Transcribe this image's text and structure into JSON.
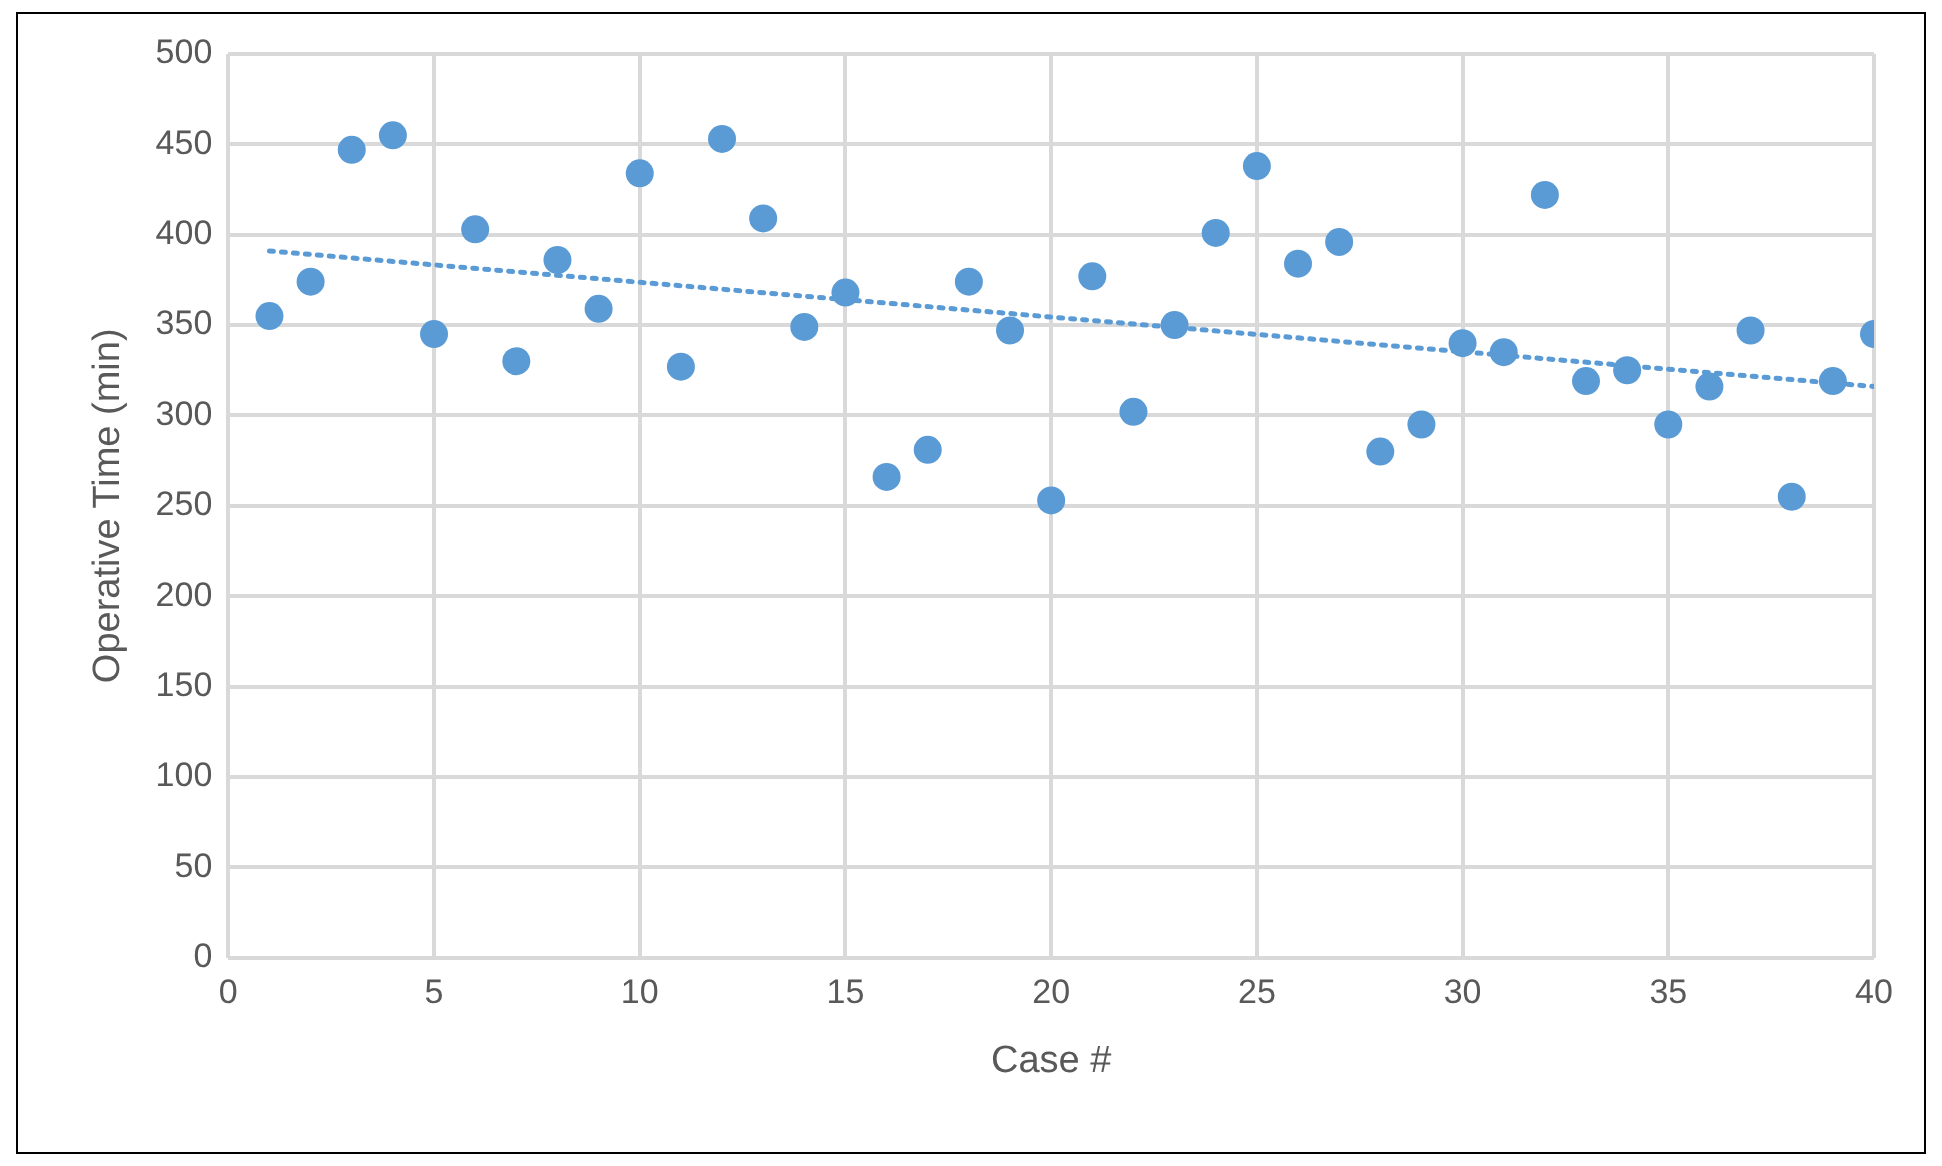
{
  "chart_data": {
    "type": "scatter",
    "xlabel": "Case #",
    "ylabel": "Operative Time (min)",
    "xlim": [
      0,
      40
    ],
    "xticks": [
      0,
      5,
      10,
      15,
      20,
      25,
      30,
      35,
      40
    ],
    "ylim": [
      0,
      500
    ],
    "yticks": [
      0,
      50,
      100,
      150,
      200,
      250,
      300,
      350,
      400,
      450,
      500
    ],
    "grid": true,
    "legend": false,
    "marker": "circle",
    "series": [
      {
        "type": "scatter",
        "color": "#5b9bd5",
        "x": [
          1,
          2,
          3,
          4,
          5,
          6,
          7,
          8,
          9,
          10,
          11,
          12,
          13,
          14,
          15,
          16,
          17,
          18,
          19,
          20,
          21,
          22,
          23,
          24,
          25,
          26,
          27,
          28,
          29,
          30,
          31,
          32,
          33,
          34,
          35,
          36,
          37,
          38,
          39,
          40
        ],
        "values": [
          355,
          374,
          447,
          455,
          345,
          403,
          330,
          386,
          359,
          434,
          327,
          453,
          409,
          349,
          368,
          266,
          281,
          374,
          347,
          253,
          377,
          302,
          350,
          401,
          438,
          384,
          396,
          280,
          295,
          340,
          335,
          422,
          319,
          325,
          295,
          316,
          347,
          255,
          319,
          345
        ]
      },
      {
        "type": "line",
        "color": "#5b9bd5",
        "line_style": "dotted",
        "marker": "none",
        "x": [
          1,
          40
        ],
        "values": [
          391,
          316
        ]
      }
    ]
  }
}
